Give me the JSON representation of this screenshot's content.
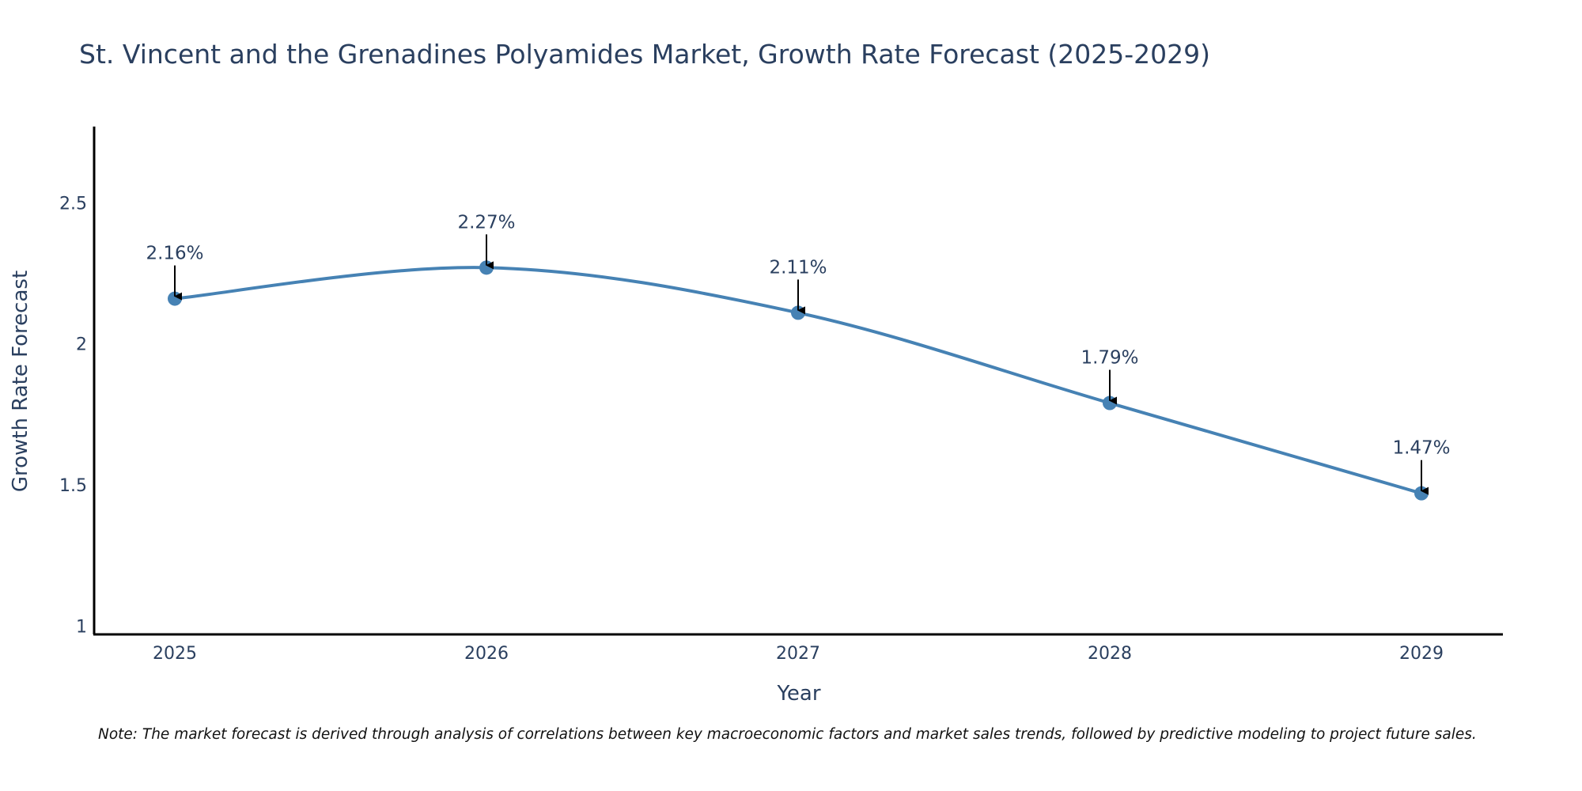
{
  "chart_data": {
    "type": "line",
    "title": "St. Vincent and the Grenadines Polyamides Market, Growth Rate Forecast (2025-2029)",
    "xlabel": "Year",
    "ylabel": "Growth Rate Forecast",
    "categories": [
      "2025",
      "2026",
      "2027",
      "2028",
      "2029"
    ],
    "series": [
      {
        "name": "Growth Rate Forecast",
        "values": [
          2.16,
          2.27,
          2.11,
          1.79,
          1.47
        ]
      }
    ],
    "data_labels": [
      "2.16%",
      "2.27%",
      "2.11%",
      "1.79%",
      "1.47%"
    ],
    "ylim": [
      0.97,
      2.77
    ],
    "yticks": [
      1,
      1.5,
      2,
      2.5
    ],
    "ytick_labels": [
      "1",
      "1.5",
      "2",
      "2.5"
    ],
    "grid": false,
    "line_color": "#4682b4",
    "note": "Note: The market forecast is derived through analysis of correlations between key macroeconomic factors and market sales trends, followed by predictive modeling to project future sales."
  }
}
